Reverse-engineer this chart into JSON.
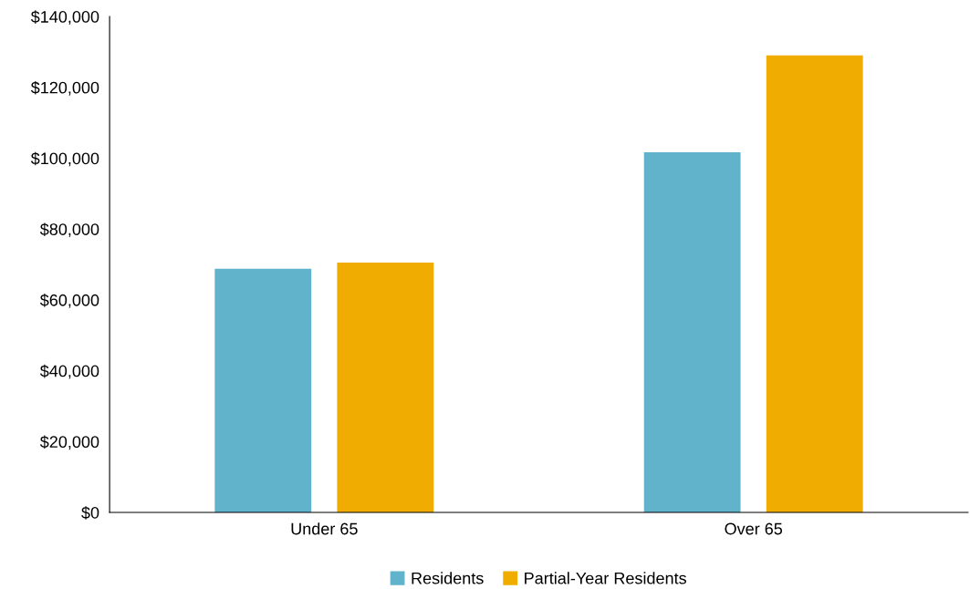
{
  "chart_data": {
    "type": "bar",
    "categories": [
      "Under 65",
      "Over 65"
    ],
    "series": [
      {
        "name": "Residents",
        "color": "#60b3cb",
        "values": [
          68800,
          101700
        ]
      },
      {
        "name": "Partial-Year Residents",
        "color": "#f0ac00",
        "values": [
          70500,
          129000
        ]
      }
    ],
    "ylim": [
      0,
      140000
    ],
    "yticks": [
      {
        "value": 0,
        "label": "$0"
      },
      {
        "value": 20000,
        "label": "$20,000"
      },
      {
        "value": 40000,
        "label": "$40,000"
      },
      {
        "value": 60000,
        "label": "$60,000"
      },
      {
        "value": 80000,
        "label": "$80,000"
      },
      {
        "value": 100000,
        "label": "$100,000"
      },
      {
        "value": 120000,
        "label": "$120,000"
      },
      {
        "value": 140000,
        "label": "$140,000"
      }
    ],
    "grid": false,
    "legend": "bottom"
  }
}
